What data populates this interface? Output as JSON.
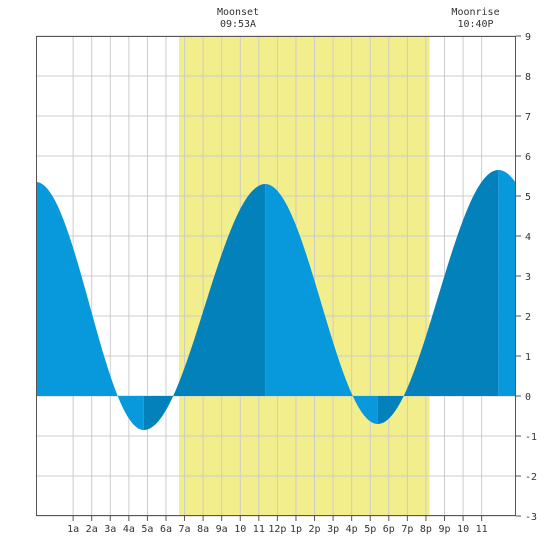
{
  "chart_data": {
    "type": "area",
    "title": "",
    "xlabel": "",
    "ylabel": "",
    "x_unit": "hour of day",
    "xlim": [
      -1,
      24.85
    ],
    "ylim": [
      -3,
      9
    ],
    "grid": true,
    "x_ticks": [
      {
        "hour": 1,
        "label": "1a"
      },
      {
        "hour": 2,
        "label": "2a"
      },
      {
        "hour": 3,
        "label": "3a"
      },
      {
        "hour": 4,
        "label": "4a"
      },
      {
        "hour": 5,
        "label": "5a"
      },
      {
        "hour": 6,
        "label": "6a"
      },
      {
        "hour": 7,
        "label": "7a"
      },
      {
        "hour": 8,
        "label": "8a"
      },
      {
        "hour": 9,
        "label": "9a"
      },
      {
        "hour": 10,
        "label": "10"
      },
      {
        "hour": 11,
        "label": "11"
      },
      {
        "hour": 12,
        "label": "12p"
      },
      {
        "hour": 13,
        "label": "1p"
      },
      {
        "hour": 14,
        "label": "2p"
      },
      {
        "hour": 15,
        "label": "3p"
      },
      {
        "hour": 16,
        "label": "4p"
      },
      {
        "hour": 17,
        "label": "5p"
      },
      {
        "hour": 18,
        "label": "6p"
      },
      {
        "hour": 19,
        "label": "7p"
      },
      {
        "hour": 20,
        "label": "8p"
      },
      {
        "hour": 21,
        "label": "9p"
      },
      {
        "hour": 22,
        "label": "10"
      },
      {
        "hour": 23,
        "label": "11"
      }
    ],
    "y_ticks": [
      -3,
      -2,
      -1,
      0,
      1,
      2,
      3,
      4,
      5,
      6,
      7,
      8,
      9
    ],
    "daylight": {
      "start_hour": 6.7,
      "end_hour": 20.2
    },
    "tide_extremes": [
      {
        "hour": -1.0,
        "height": 5.35,
        "kind": "high"
      },
      {
        "hour": 4.8,
        "height": -0.85,
        "kind": "low"
      },
      {
        "hour": 11.35,
        "height": 5.3,
        "kind": "high"
      },
      {
        "hour": 17.4,
        "height": -0.7,
        "kind": "low"
      },
      {
        "hour": 23.9,
        "height": 5.65,
        "kind": "high"
      }
    ],
    "annotations": [
      {
        "name": "moonset",
        "label": "Moonset",
        "time": "09:53A",
        "hour": 9.88
      },
      {
        "name": "moonrise",
        "label": "Moonrise",
        "time": "10:40P",
        "hour": 22.67
      }
    ],
    "colors": {
      "daylight": "#f3ee8c",
      "tide_light": "#0899dd",
      "tide_dark": "#0381bb",
      "grid": "#cccccc",
      "frame": "#555555"
    }
  }
}
